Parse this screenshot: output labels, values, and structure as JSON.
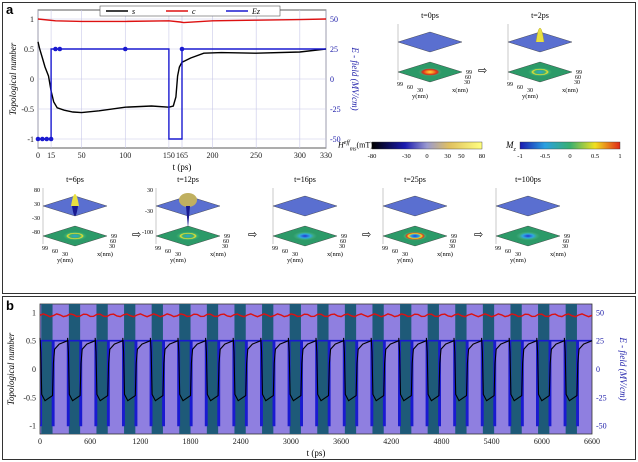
{
  "panels": {
    "a_label": "a",
    "b_label": "b"
  },
  "chart_data": [
    {
      "type": "line",
      "panel": "a",
      "xlabel": "t (ps)",
      "ylabel": "Topological number",
      "ylabel_right": "E - field (MV/cm)",
      "x_ticks": [
        "0",
        "15",
        "50",
        "100",
        "150",
        "165",
        "200",
        "250",
        "300",
        "330"
      ],
      "x_tick_values": [
        0,
        15,
        50,
        100,
        150,
        165,
        200,
        250,
        300,
        330
      ],
      "y_ticks": [
        "1",
        "0.5",
        "0",
        "-0.5",
        "-1"
      ],
      "y_tick_values": [
        1,
        0.5,
        0,
        -0.5,
        -1
      ],
      "y2_ticks": [
        "50",
        "25",
        "0",
        "-25",
        "-50"
      ],
      "y2_tick_values": [
        50,
        25,
        0,
        -25,
        -50
      ],
      "xlim": [
        0,
        330
      ],
      "ylim": [
        -1.15,
        1.15
      ],
      "y2lim": [
        -57.5,
        57.5
      ],
      "legend": [
        "s",
        "c",
        "Ez"
      ],
      "legend_placement": "top",
      "series": [
        {
          "name": "s",
          "color": "#000000",
          "axis": "left",
          "x": [
            0,
            2,
            5,
            8,
            12,
            15,
            18,
            22,
            30,
            40,
            50,
            70,
            100,
            130,
            150,
            155,
            158,
            160,
            162,
            165,
            168,
            175,
            190,
            210,
            250,
            300,
            330
          ],
          "y": [
            0.62,
            0.5,
            0.35,
            0.2,
            0.05,
            -0.2,
            -0.38,
            -0.48,
            -0.52,
            -0.55,
            -0.56,
            -0.53,
            -0.47,
            -0.45,
            -0.47,
            -0.45,
            -0.3,
            0.05,
            0.2,
            0.28,
            0.3,
            0.35,
            0.43,
            0.44,
            0.43,
            0.45,
            0.5
          ]
        },
        {
          "name": "c",
          "color": "#dd1111",
          "axis": "left",
          "x": [
            0,
            20,
            50,
            100,
            150,
            163,
            167,
            200,
            250,
            300,
            330
          ],
          "y": [
            1.0,
            0.97,
            0.96,
            0.96,
            0.97,
            0.95,
            0.94,
            0.97,
            0.98,
            0.99,
            1.0
          ]
        },
        {
          "name": "Ez",
          "color": "#1a1ad0",
          "axis": "right",
          "x": [
            0,
            15,
            15,
            150,
            150,
            165,
            165,
            330
          ],
          "y": [
            -50,
            -50,
            25,
            25,
            -50,
            -50,
            25,
            25
          ]
        }
      ],
      "markers": {
        "series": "Ez",
        "x": [
          0,
          5,
          10,
          15,
          20,
          25,
          100,
          165
        ]
      }
    },
    {
      "type": "line",
      "panel": "b",
      "xlabel": "t (ps)",
      "ylabel": "Topological number",
      "ylabel_right": "E - field (MV/cm)",
      "x_ticks": [
        "0",
        "600",
        "1200",
        "1800",
        "2400",
        "3000",
        "3600",
        "4200",
        "4800",
        "5400",
        "6000",
        "6600"
      ],
      "x_tick_values": [
        0,
        600,
        1200,
        1800,
        2400,
        3000,
        3600,
        4200,
        4800,
        5400,
        6000,
        6600
      ],
      "y_ticks": [
        "1",
        "0.5",
        "0",
        "-0.5",
        "-1"
      ],
      "y_tick_values": [
        1,
        0.5,
        0,
        -0.5,
        -1
      ],
      "y2_ticks": [
        "50",
        "25",
        "0",
        "-25",
        "-50"
      ],
      "y2_tick_values": [
        50,
        25,
        0,
        -25,
        -50
      ],
      "xlim": [
        0,
        6600
      ],
      "ylim": [
        -1.15,
        1.15
      ],
      "y2lim": [
        -57.5,
        57.5
      ],
      "period_ps": 330,
      "cycles": 20,
      "series": [
        {
          "name": "s",
          "color": "#000000",
          "axis": "left",
          "pattern": "flips between 0.5 and -0.5 each half period"
        },
        {
          "name": "c",
          "color": "#dd1111",
          "axis": "left",
          "pattern": "near 0.95 with small ripple"
        },
        {
          "name": "Ez",
          "color": "#1a1ad0",
          "axis": "right",
          "pattern": "square wave between 25 and -50"
        }
      ]
    }
  ],
  "snapshots_top": [
    {
      "title": "t=0ps",
      "z_ticks": [
        "",
        ""
      ],
      "y_ticks": [
        "99",
        "60",
        "30"
      ],
      "x_ticks": [
        "99",
        "60",
        "30"
      ],
      "ylabel": "y(nm)",
      "xlabel": "x(nm)",
      "z_range": [
        "-80",
        ""
      ]
    },
    {
      "title": "t=2ps",
      "y_ticks": [
        "99",
        "60",
        "30"
      ],
      "x_ticks": [
        "99",
        "60",
        "30"
      ],
      "ylabel": "y(nm)",
      "xlabel": "x(nm)"
    }
  ],
  "snapshots_bottom": [
    {
      "title": "t=6ps",
      "z_ticks": [
        "80",
        "30",
        "-30",
        "-80"
      ],
      "y_ticks": [
        "99",
        "60",
        "30"
      ],
      "x_ticks": [
        "99",
        "60",
        "30"
      ],
      "ylabel": "y(nm)",
      "xlabel": "x(nm)"
    },
    {
      "title": "t=12ps",
      "z_ticks": [
        "30",
        "-30",
        "-100"
      ],
      "y_ticks": [
        "99",
        "60",
        "30"
      ],
      "x_ticks": [
        "99",
        "60",
        "30"
      ],
      "ylabel": "y(nm)",
      "xlabel": "x(nm)"
    },
    {
      "title": "t=16ps",
      "y_ticks": [
        "99",
        "60",
        "30"
      ],
      "x_ticks": [
        "99",
        "60",
        "30"
      ],
      "ylabel": "y(nm)",
      "xlabel": "x(nm)"
    },
    {
      "title": "t=25ps",
      "y_ticks": [
        "99",
        "60",
        "30"
      ],
      "x_ticks": [
        "99",
        "60",
        "30"
      ],
      "ylabel": "y(nm)",
      "xlabel": "x(nm)"
    },
    {
      "title": "t=100ps",
      "y_ticks": [
        "99",
        "60",
        "30"
      ],
      "x_ticks": [
        "99",
        "60",
        "30"
      ],
      "ylabel": "y(nm)",
      "xlabel": "x(nm)"
    }
  ],
  "colorbar_h": {
    "label": "H",
    "label_sup": "eff",
    "label_sub": "ms",
    "unit": "(mT)",
    "ticks": [
      "-80",
      "-30",
      "0",
      "30",
      "50",
      "80"
    ]
  },
  "colorbar_m": {
    "label": "M",
    "label_sub": "z",
    "ticks": [
      "-1",
      "-0.5",
      "0",
      "0.5",
      "1"
    ]
  },
  "top_snapshot_z_label": "-80",
  "colors": {
    "blue_line": "#1a1ad0",
    "red_line": "#dd1111",
    "band_dark": "#1e5a78",
    "band_light": "#8f7fe0"
  }
}
